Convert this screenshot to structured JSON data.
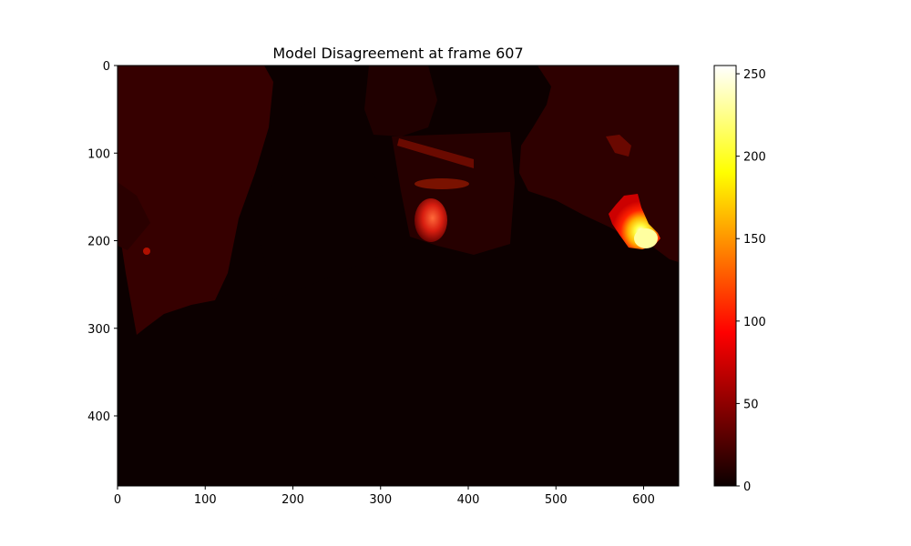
{
  "chart_data": {
    "type": "heatmap",
    "title": "Model Disagreement at frame 607",
    "xlabel": "",
    "ylabel": "",
    "xlim": [
      0,
      640
    ],
    "ylim": [
      480,
      0
    ],
    "x_ticks": [
      0,
      100,
      200,
      300,
      400,
      500,
      600
    ],
    "y_ticks": [
      0,
      100,
      200,
      300,
      400
    ],
    "colormap": "hot",
    "colorbar": {
      "range": [
        0,
        255
      ],
      "ticks": [
        0,
        50,
        100,
        150,
        200,
        250
      ]
    },
    "grid": false,
    "regions": [
      {
        "name": "left-wall",
        "value": 30,
        "x": [
          0,
          170
        ],
        "y": [
          0,
          300
        ]
      },
      {
        "name": "top-right-wall",
        "value": 25,
        "x": [
          450,
          640
        ],
        "y": [
          0,
          230
        ]
      },
      {
        "name": "center-shelf",
        "value": 45,
        "x": [
          320,
          440
        ],
        "y": [
          80,
          140
        ]
      },
      {
        "name": "center-hotspot",
        "value": 95,
        "x": [
          340,
          380
        ],
        "y": [
          150,
          200
        ]
      },
      {
        "name": "right-hotspot",
        "value": 255,
        "x": [
          570,
          620
        ],
        "y": [
          155,
          210
        ]
      }
    ]
  }
}
